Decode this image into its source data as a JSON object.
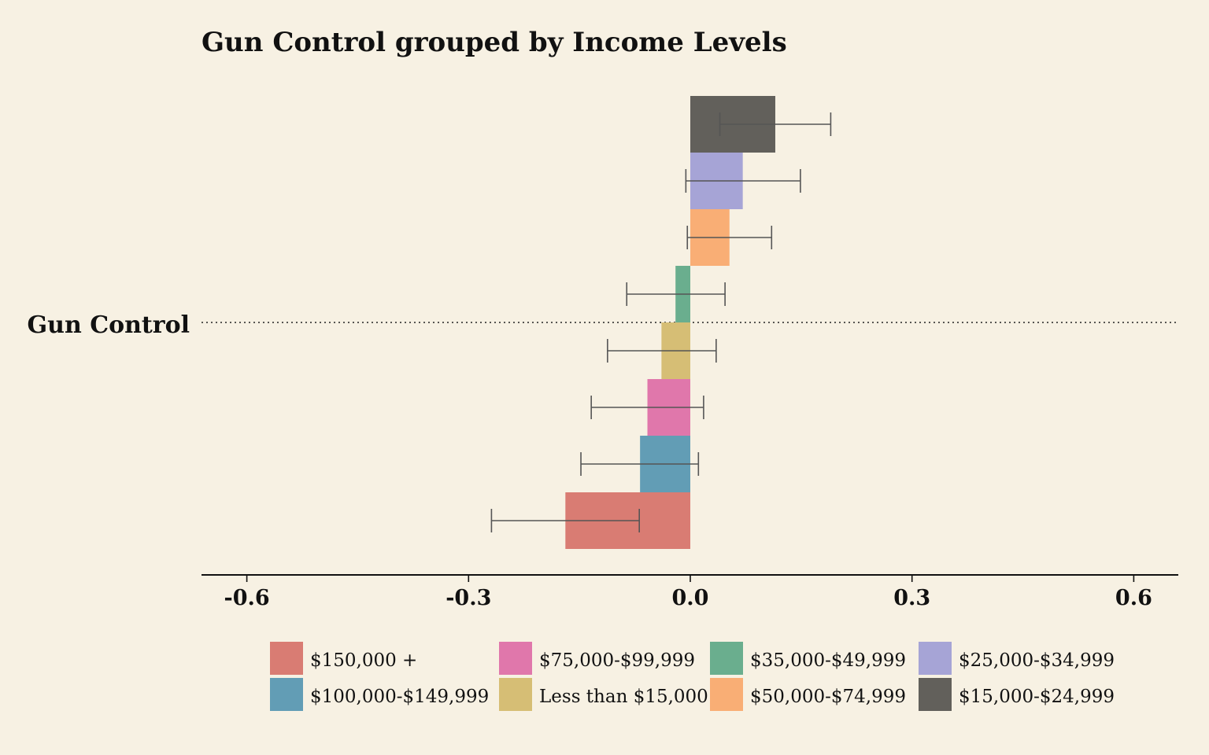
{
  "chart_data": {
    "type": "bar",
    "orientation": "horizontal",
    "title": "Gun Control grouped by Income Levels",
    "categories": [
      "Gun Control"
    ],
    "xlim": [
      -0.66,
      0.66
    ],
    "ticks": [
      -0.6,
      -0.3,
      0.0,
      0.3,
      0.6
    ],
    "tick_labels": [
      "-0.6",
      "-0.3",
      "0.0",
      "0.3",
      "0.6"
    ],
    "grid": false,
    "legend_position": "bottom",
    "series": [
      {
        "name": "$15,000-$24,999",
        "color": "#62605b",
        "value": 0.115,
        "ci_low": 0.04,
        "ci_high": 0.19
      },
      {
        "name": "$25,000-$34,999",
        "color": "#a6a4d6",
        "value": 0.071,
        "ci_low": -0.006,
        "ci_high": 0.149
      },
      {
        "name": "$50,000-$74,999",
        "color": "#f9ae75",
        "value": 0.053,
        "ci_low": -0.004,
        "ci_high": 0.11
      },
      {
        "name": "$35,000-$49,999",
        "color": "#6aae8e",
        "value": -0.02,
        "ci_low": -0.086,
        "ci_high": 0.047
      },
      {
        "name": "Less than $15,000",
        "color": "#d6be75",
        "value": -0.039,
        "ci_low": -0.112,
        "ci_high": 0.035
      },
      {
        "name": "$75,000-$99,999",
        "color": "#e077ab",
        "value": -0.058,
        "ci_low": -0.134,
        "ci_high": 0.018
      },
      {
        "name": "$100,000-$149,999",
        "color": "#629db5",
        "value": -0.068,
        "ci_low": -0.148,
        "ci_high": 0.011
      },
      {
        "name": "$150,000 +",
        "color": "#d97c73",
        "value": -0.169,
        "ci_low": -0.269,
        "ci_high": -0.069
      }
    ],
    "legend_order": [
      "$150,000 +",
      "$75,000-$99,999",
      "$35,000-$49,999",
      "$25,000-$34,999",
      "$100,000-$149,999",
      "Less than $15,000",
      "$50,000-$74,999",
      "$15,000-$24,999"
    ]
  }
}
